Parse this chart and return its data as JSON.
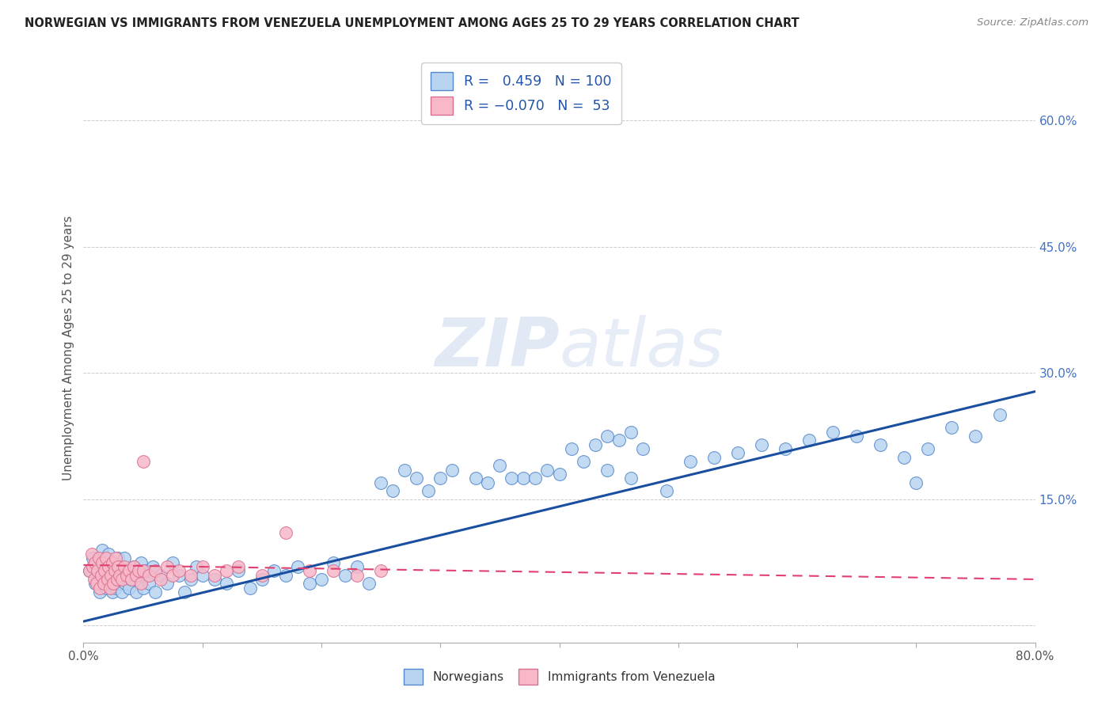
{
  "title": "NORWEGIAN VS IMMIGRANTS FROM VENEZUELA UNEMPLOYMENT AMONG AGES 25 TO 29 YEARS CORRELATION CHART",
  "source": "Source: ZipAtlas.com",
  "ylabel": "Unemployment Among Ages 25 to 29 years",
  "xlim": [
    0.0,
    0.8
  ],
  "ylim": [
    -0.02,
    0.68
  ],
  "xticks": [
    0.0,
    0.1,
    0.2,
    0.3,
    0.4,
    0.5,
    0.6,
    0.7,
    0.8
  ],
  "yticks": [
    0.0,
    0.15,
    0.3,
    0.45,
    0.6
  ],
  "ytick_labels": [
    "",
    "15.0%",
    "30.0%",
    "45.0%",
    "60.0%"
  ],
  "xtick_labels": [
    "0.0%",
    "",
    "",
    "",
    "",
    "",
    "",
    "",
    "80.0%"
  ],
  "r_norwegian": 0.459,
  "n_norwegian": 100,
  "r_venezuela": -0.07,
  "n_venezuela": 53,
  "blue_face": "#b8d4f0",
  "blue_edge": "#5588cc",
  "pink_face": "#f8b8c8",
  "pink_edge": "#d87090",
  "blue_line": "#1a4fa0",
  "pink_line": "#e04070",
  "blue_trend_x": [
    0.0,
    0.8
  ],
  "blue_trend_y": [
    0.005,
    0.278
  ],
  "pink_trend_x": [
    0.0,
    0.8
  ],
  "pink_trend_y": [
    0.072,
    0.055
  ],
  "scatter_blue_x": [
    0.005,
    0.008,
    0.01,
    0.012,
    0.014,
    0.015,
    0.016,
    0.017,
    0.018,
    0.019,
    0.02,
    0.021,
    0.022,
    0.023,
    0.024,
    0.025,
    0.026,
    0.027,
    0.028,
    0.029,
    0.03,
    0.031,
    0.032,
    0.033,
    0.034,
    0.035,
    0.036,
    0.038,
    0.04,
    0.042,
    0.044,
    0.046,
    0.048,
    0.05,
    0.052,
    0.055,
    0.058,
    0.06,
    0.065,
    0.07,
    0.075,
    0.08,
    0.085,
    0.09,
    0.095,
    0.1,
    0.11,
    0.12,
    0.13,
    0.14,
    0.15,
    0.16,
    0.17,
    0.18,
    0.19,
    0.2,
    0.21,
    0.22,
    0.23,
    0.24,
    0.25,
    0.26,
    0.27,
    0.28,
    0.29,
    0.3,
    0.31,
    0.33,
    0.35,
    0.37,
    0.39,
    0.41,
    0.43,
    0.45,
    0.47,
    0.49,
    0.51,
    0.53,
    0.55,
    0.57,
    0.59,
    0.61,
    0.63,
    0.65,
    0.67,
    0.69,
    0.71,
    0.73,
    0.75,
    0.77,
    0.44,
    0.46,
    0.34,
    0.36,
    0.38,
    0.4,
    0.42,
    0.44,
    0.46,
    0.7
  ],
  "scatter_blue_y": [
    0.065,
    0.08,
    0.05,
    0.07,
    0.04,
    0.06,
    0.09,
    0.055,
    0.075,
    0.045,
    0.065,
    0.085,
    0.05,
    0.07,
    0.04,
    0.055,
    0.075,
    0.045,
    0.065,
    0.08,
    0.05,
    0.07,
    0.04,
    0.06,
    0.08,
    0.05,
    0.065,
    0.045,
    0.055,
    0.07,
    0.04,
    0.06,
    0.075,
    0.045,
    0.065,
    0.05,
    0.07,
    0.04,
    0.06,
    0.05,
    0.075,
    0.06,
    0.04,
    0.055,
    0.07,
    0.06,
    0.055,
    0.05,
    0.065,
    0.045,
    0.055,
    0.065,
    0.06,
    0.07,
    0.05,
    0.055,
    0.075,
    0.06,
    0.07,
    0.05,
    0.17,
    0.16,
    0.185,
    0.175,
    0.16,
    0.175,
    0.185,
    0.175,
    0.19,
    0.175,
    0.185,
    0.21,
    0.215,
    0.22,
    0.21,
    0.16,
    0.195,
    0.2,
    0.205,
    0.215,
    0.21,
    0.22,
    0.23,
    0.225,
    0.215,
    0.2,
    0.21,
    0.235,
    0.225,
    0.25,
    0.225,
    0.23,
    0.17,
    0.175,
    0.175,
    0.18,
    0.195,
    0.185,
    0.175,
    0.17
  ],
  "scatter_pink_x": [
    0.005,
    0.007,
    0.008,
    0.009,
    0.01,
    0.011,
    0.012,
    0.013,
    0.014,
    0.015,
    0.016,
    0.017,
    0.018,
    0.019,
    0.02,
    0.021,
    0.022,
    0.023,
    0.024,
    0.025,
    0.026,
    0.027,
    0.028,
    0.029,
    0.03,
    0.032,
    0.034,
    0.036,
    0.038,
    0.04,
    0.042,
    0.044,
    0.046,
    0.048,
    0.05,
    0.055,
    0.06,
    0.065,
    0.07,
    0.075,
    0.08,
    0.09,
    0.1,
    0.11,
    0.12,
    0.13,
    0.15,
    0.17,
    0.19,
    0.21,
    0.23,
    0.25,
    0.05
  ],
  "scatter_pink_y": [
    0.065,
    0.085,
    0.07,
    0.055,
    0.075,
    0.05,
    0.065,
    0.08,
    0.045,
    0.06,
    0.075,
    0.05,
    0.065,
    0.08,
    0.055,
    0.07,
    0.045,
    0.06,
    0.075,
    0.05,
    0.065,
    0.08,
    0.055,
    0.07,
    0.06,
    0.055,
    0.07,
    0.06,
    0.065,
    0.055,
    0.07,
    0.06,
    0.065,
    0.05,
    0.065,
    0.06,
    0.065,
    0.055,
    0.07,
    0.06,
    0.065,
    0.06,
    0.07,
    0.06,
    0.065,
    0.07,
    0.06,
    0.11,
    0.065,
    0.065,
    0.06,
    0.065,
    0.195
  ]
}
